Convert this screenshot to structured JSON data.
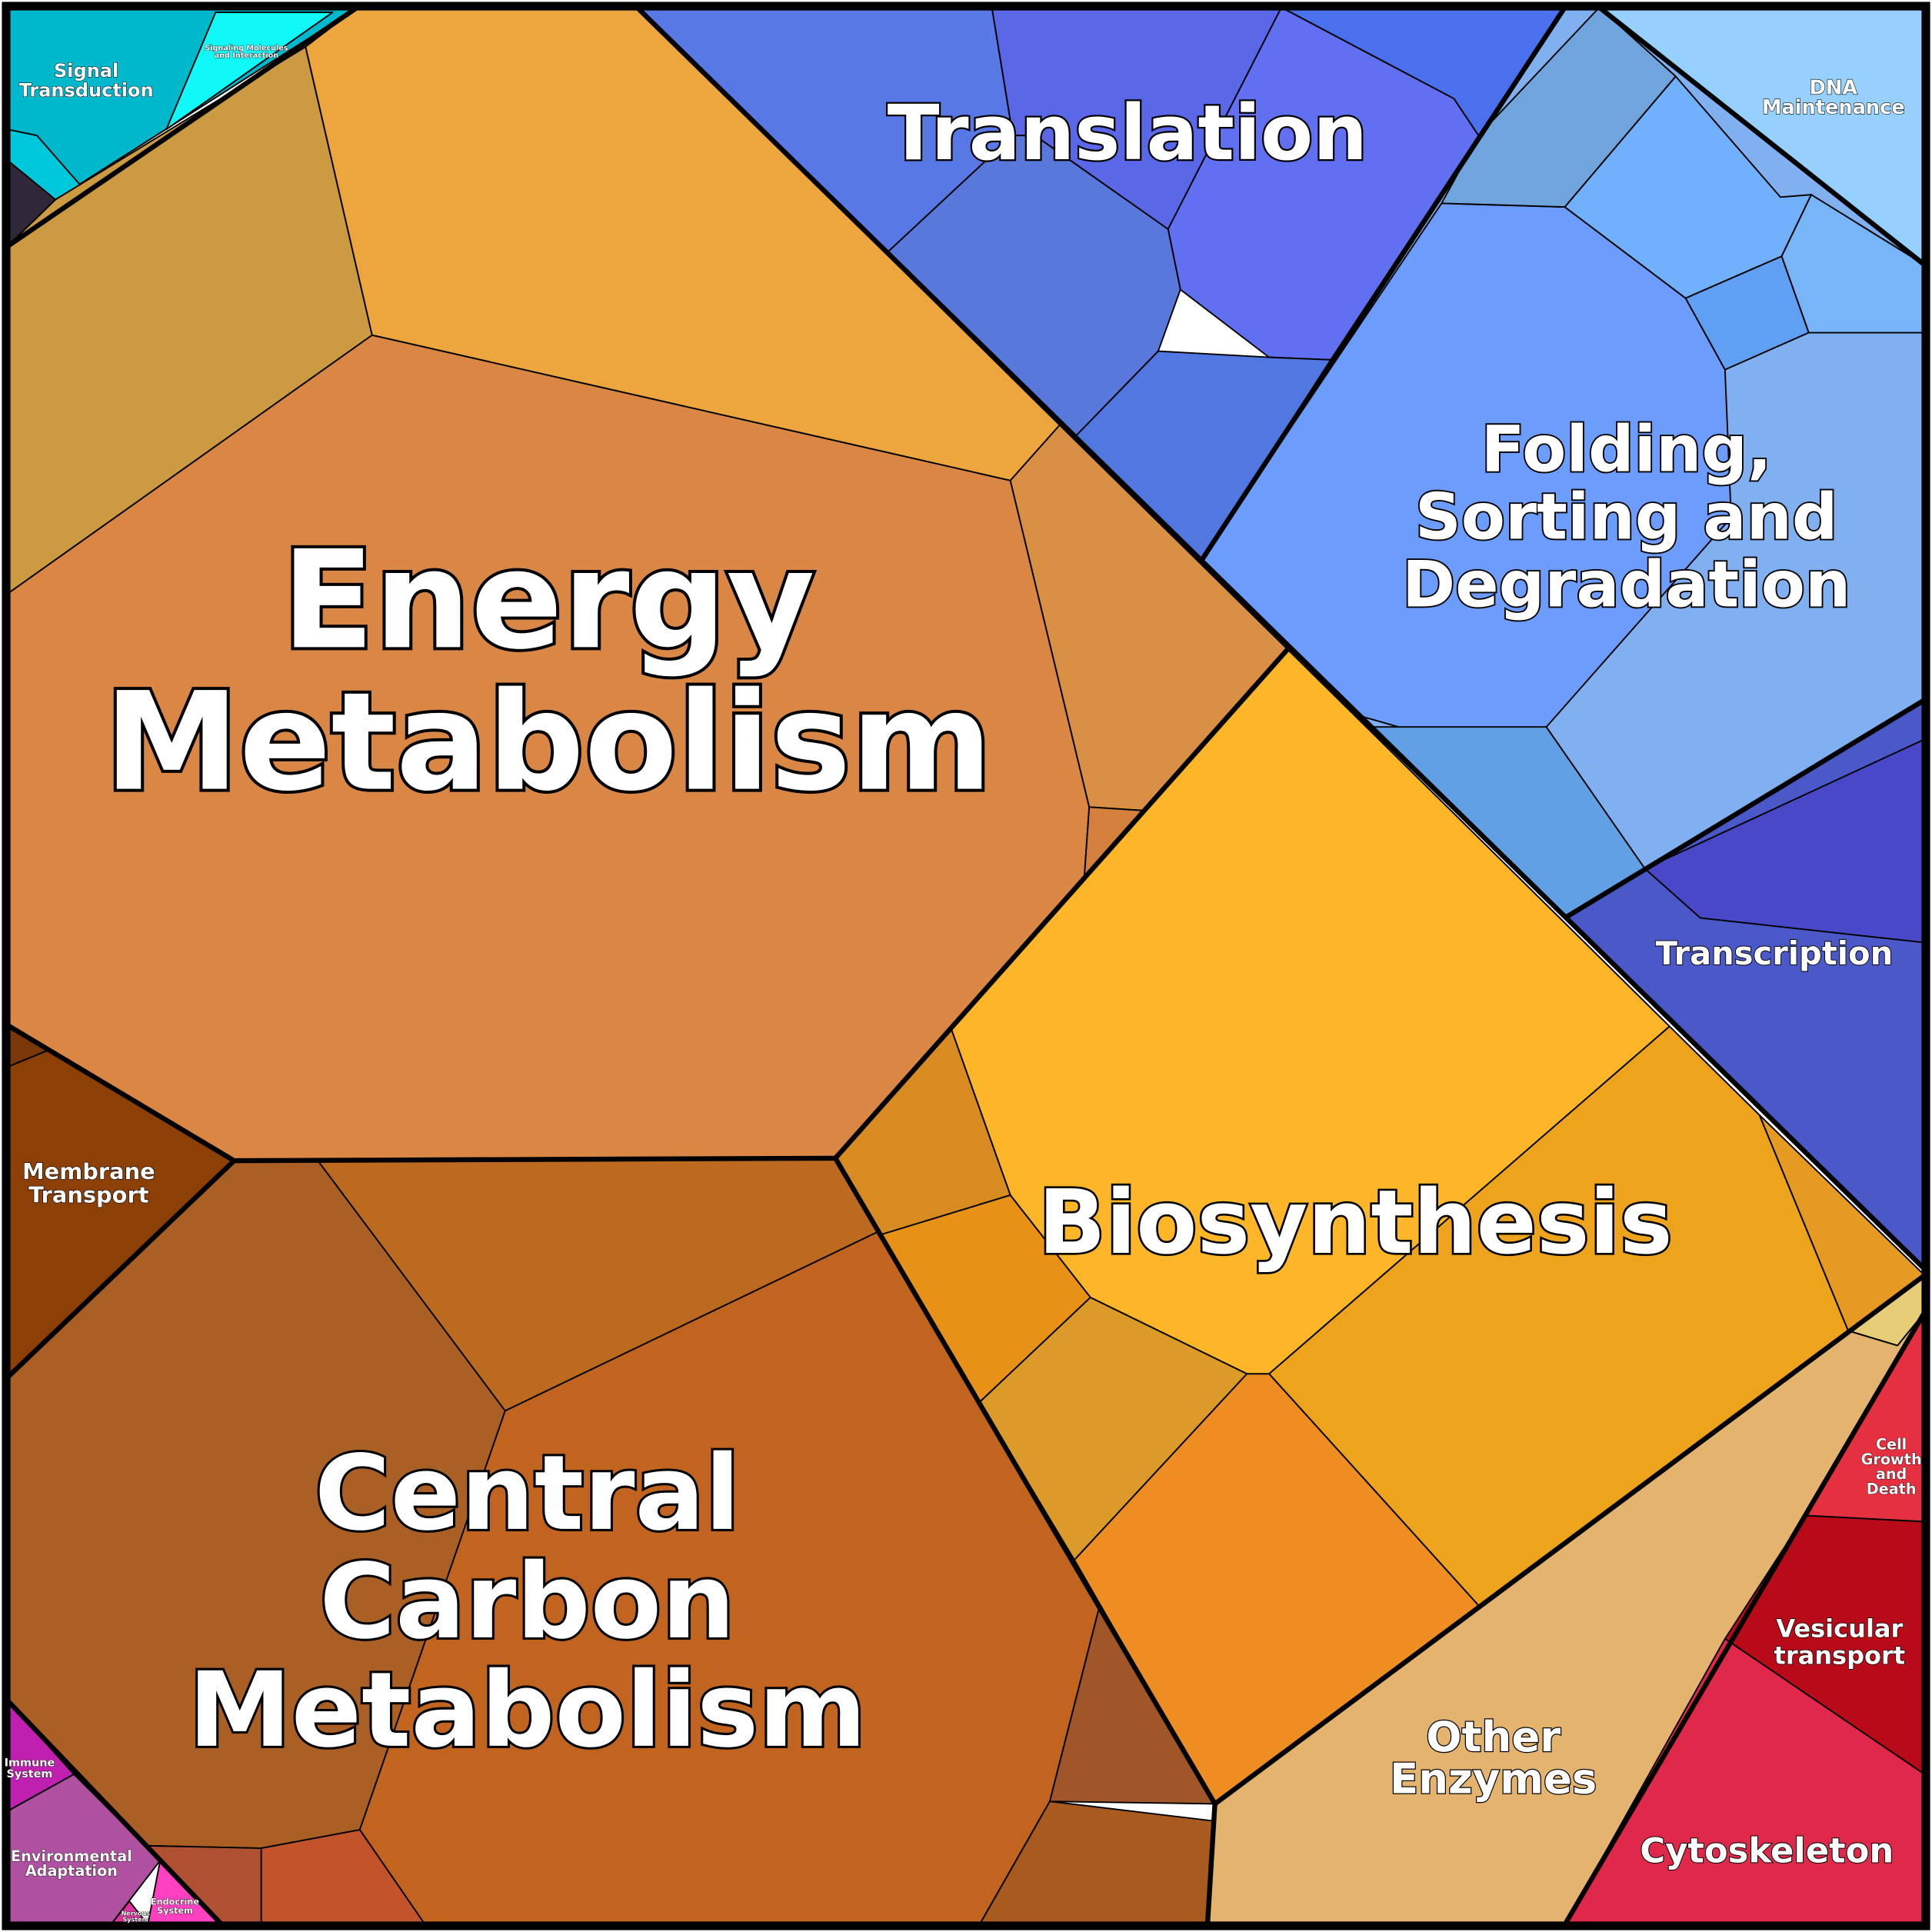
{
  "regions": [
    {
      "label": [
        "Energy",
        "Metabolism"
      ]
    },
    {
      "label": [
        "Central",
        "Carbon",
        "Metabolism"
      ]
    },
    {
      "label": [
        "Biosynthesis"
      ]
    },
    {
      "label": [
        "Translation"
      ]
    },
    {
      "label": [
        "Folding,",
        "Sorting and",
        "Degradation"
      ]
    },
    {
      "label": [
        "DNA",
        "Maintenance"
      ]
    },
    {
      "label": [
        "Transcription"
      ]
    },
    {
      "label": [
        "Membrane",
        "Transport"
      ]
    },
    {
      "label": [
        "Other",
        "Enzymes"
      ]
    },
    {
      "label": [
        "Cytoskeleton"
      ]
    },
    {
      "label": [
        "Vesicular",
        "transport"
      ]
    },
    {
      "label": [
        "Cell",
        "Growth",
        "and",
        "Death"
      ]
    },
    {
      "label": [
        "Signal",
        "Transduction"
      ]
    },
    {
      "label": [
        "Signaling Molecules",
        "and Interaction"
      ]
    },
    {
      "label": [
        "Immune",
        "System"
      ]
    },
    {
      "label": [
        "Environmental",
        "Adaptation"
      ]
    },
    {
      "label": [
        "Endocrine",
        "System"
      ]
    },
    {
      "label": [
        "Nervous",
        "System"
      ]
    }
  ]
}
